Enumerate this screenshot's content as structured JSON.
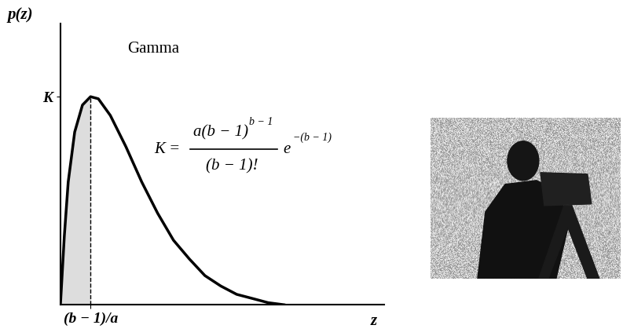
{
  "chart_data": {
    "type": "line",
    "x": [
      0,
      0.12,
      0.24,
      0.44,
      0.68,
      0.93,
      1.17,
      1.54,
      2.02,
      2.51,
      3.0,
      3.49,
      3.98,
      4.46,
      4.95,
      5.44,
      5.93,
      6.41,
      6.9
    ],
    "values": [
      0,
      0.33,
      0.59,
      0.83,
      0.96,
      1.0,
      0.99,
      0.91,
      0.76,
      0.59,
      0.44,
      0.31,
      0.22,
      0.14,
      0.09,
      0.05,
      0.03,
      0.01,
      0.0
    ],
    "color": "#000000",
    "x_label": "z",
    "y_label": "p(z)",
    "xlim": [
      0,
      10
    ],
    "ylim": [
      0,
      1.35
    ],
    "xticks": [
      {
        "value": 0.93,
        "label": "(b − 1)/a"
      }
    ],
    "yticks": [
      {
        "value": 1.0,
        "label": "K"
      }
    ],
    "grid": false,
    "annotation": "Gamma",
    "formula": {
      "lhs": "K =",
      "numerator": "a(b − 1)",
      "numerator_exponent": "b − 1",
      "denominator": "(b − 1)!",
      "factor": "e",
      "factor_exponent": "−(b − 1)"
    }
  }
}
